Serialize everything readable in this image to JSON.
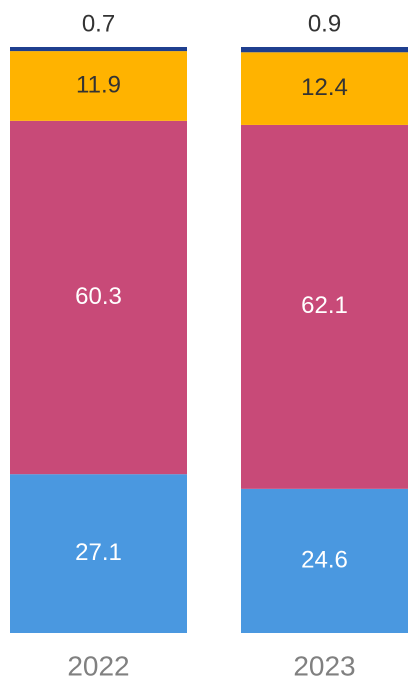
{
  "chart_data": {
    "type": "stacked_bar",
    "categories": [
      "2022",
      "2023"
    ],
    "series": [
      {
        "color": "#4a98e0",
        "values": [
          27.1,
          24.6
        ]
      },
      {
        "color": "#c84a78",
        "values": [
          60.3,
          62.1
        ]
      },
      {
        "color": "#ffb300",
        "values": [
          11.9,
          12.4
        ]
      },
      {
        "color": "#1f3f8f",
        "values": [
          0.7,
          0.9
        ]
      }
    ]
  }
}
